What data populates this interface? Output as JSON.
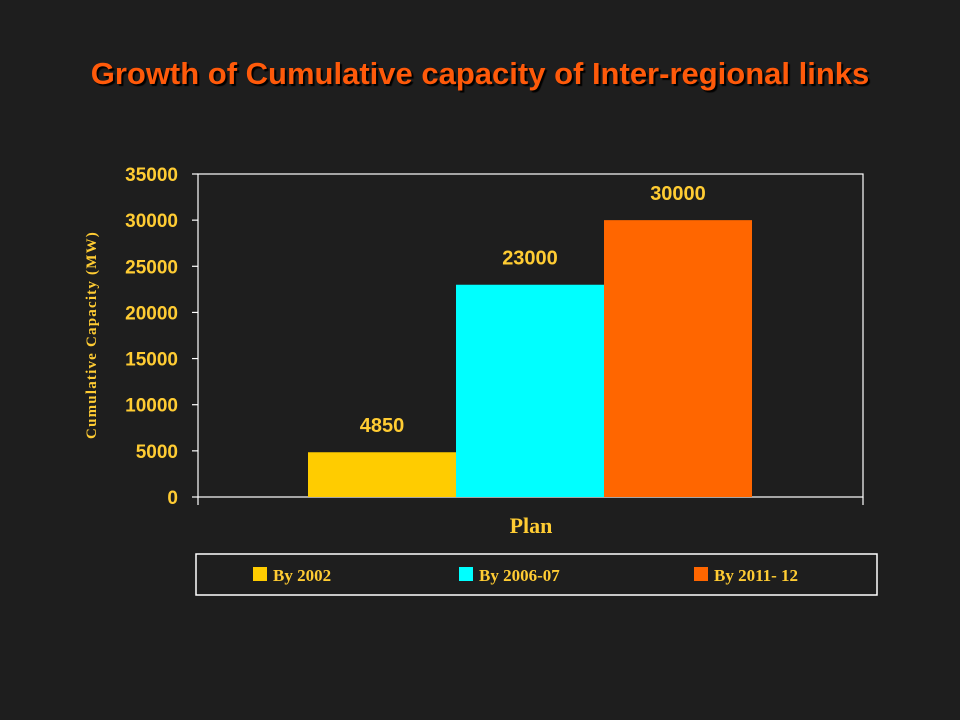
{
  "title": "Growth of Cumulative capacity of Inter-regional links",
  "colors": {
    "background": "#1e1e1e",
    "title": "#ff5a0a",
    "text": "#ffcc33",
    "axis": "#ffffff"
  },
  "chart_data": {
    "type": "bar",
    "xlabel": "Plan",
    "ylabel": "Cumulative Capacity (MW)",
    "ylim": [
      0,
      35000
    ],
    "ytick_step": 5000,
    "grid": false,
    "legend_position": "bottom",
    "series": [
      {
        "name": "By 2002",
        "values": [
          4850
        ],
        "color": "#ffcc00"
      },
      {
        "name": "By 2006-07",
        "values": [
          23000
        ],
        "color": "#00ffff"
      },
      {
        "name": "By 2011- 12",
        "values": [
          30000
        ],
        "color": "#ff6600"
      }
    ]
  }
}
